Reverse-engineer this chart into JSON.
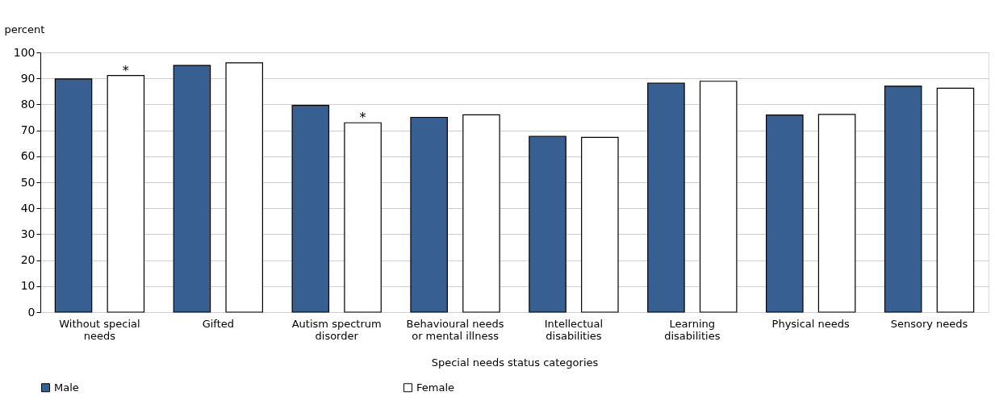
{
  "chart_data": {
    "type": "bar",
    "xlabel": "Special needs status categories",
    "ylabel": "percent",
    "categories": [
      "Without special needs",
      "Gifted",
      "Autism spectrum disorder",
      "Behavioural needs or mental illness",
      "Intellectual disabilities",
      "Learning disabilities",
      "Physical needs",
      "Sensory needs"
    ],
    "series": [
      {
        "name": "Male",
        "color": "#375f91",
        "values": [
          89.8,
          95,
          79.6,
          75,
          67.7,
          88.2,
          75.9,
          87
        ]
      },
      {
        "name": "Female",
        "color": "#ffffff",
        "values": [
          91.1,
          96,
          72.9,
          76,
          67.3,
          88.9,
          76.1,
          86.2
        ],
        "value_labels": [
          "*",
          null,
          "*",
          null,
          null,
          null,
          null,
          null
        ]
      }
    ],
    "ylim": [
      0,
      100
    ],
    "yticks": [
      0,
      10,
      20,
      30,
      40,
      50,
      60,
      70,
      80,
      90,
      100
    ],
    "grid": "y",
    "legend": "bottom"
  }
}
